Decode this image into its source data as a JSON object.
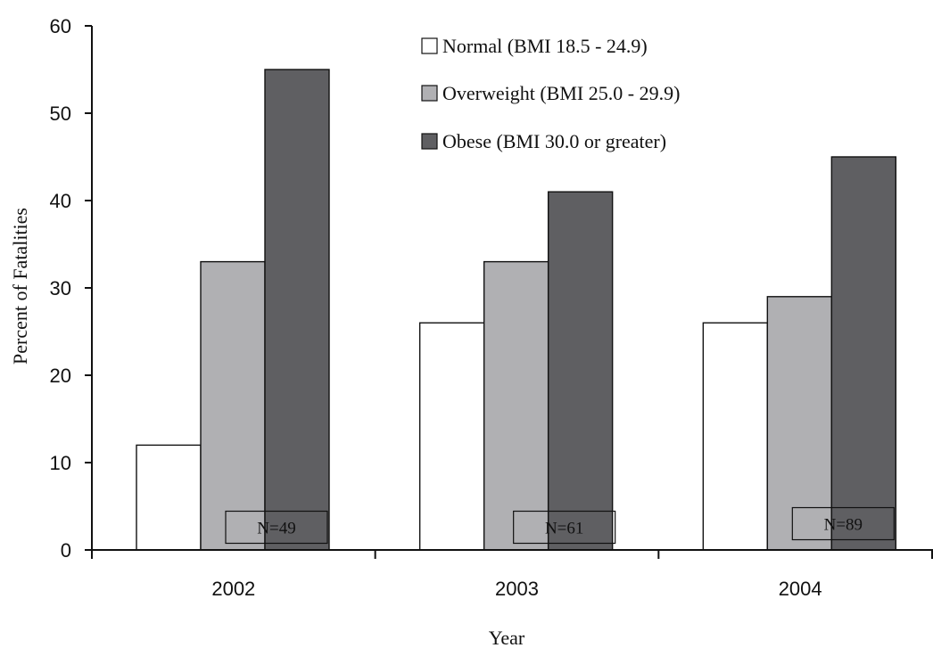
{
  "chart_data": {
    "type": "bar",
    "categories": [
      "2002",
      "2003",
      "2004"
    ],
    "series": [
      {
        "name": "Normal (BMI 18.5 - 24.9)",
        "values": [
          12,
          26,
          26
        ],
        "color": "#ffffff"
      },
      {
        "name": "Overweight (BMI 25.0 - 29.9)",
        "values": [
          33,
          33,
          29
        ],
        "color": "#b0b0b3"
      },
      {
        "name": "Obese (BMI 30.0 or greater)",
        "values": [
          55,
          41,
          45
        ],
        "color": "#5f5f62"
      }
    ],
    "annotations": [
      "N=49",
      "N=61",
      "N=89"
    ],
    "xlabel": "Year",
    "ylabel": "Percent of Fatalities",
    "ylim": [
      0,
      60
    ],
    "yticks": [
      "0",
      "10",
      "20",
      "30",
      "40",
      "50",
      "60"
    ],
    "grid": false,
    "legend_position": "top-right"
  }
}
